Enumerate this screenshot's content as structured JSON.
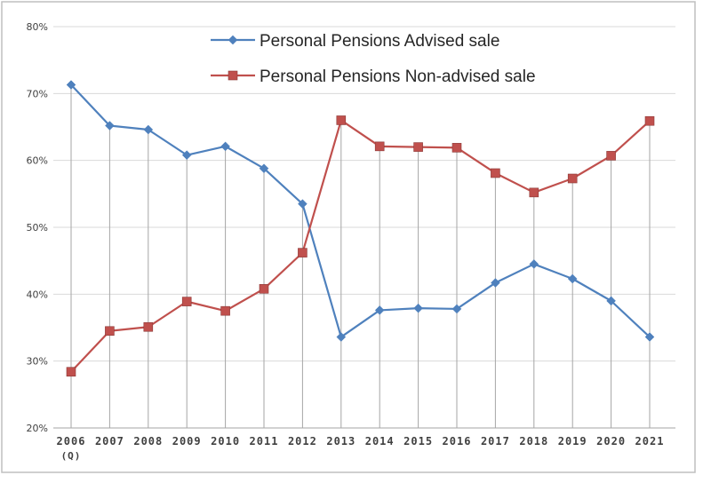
{
  "chart_data": {
    "type": "line",
    "title": "",
    "xlabel": "",
    "ylabel": "",
    "categories": [
      "2006",
      "2007",
      "2008",
      "2009",
      "2010",
      "2011",
      "2012",
      "2013",
      "2014",
      "2015",
      "2016",
      "2017",
      "2018",
      "2019",
      "2020",
      "2021"
    ],
    "category_sublabels": [
      "(Q)",
      "",
      "",
      "",
      "",
      "",
      "",
      "",
      "",
      "",
      "",
      "",
      "",
      "",
      "",
      ""
    ],
    "y_ticks": [
      "20%",
      "30%",
      "40%",
      "50%",
      "60%",
      "70%",
      "80%"
    ],
    "ylim": [
      20,
      80
    ],
    "y_unit": "%",
    "grid": true,
    "legend_position": "top-center",
    "series": [
      {
        "name": "Personal Pensions Advised sale",
        "color": "#4f81bd",
        "marker": "diamond",
        "values": [
          71.3,
          65.2,
          64.6,
          60.8,
          62.1,
          58.8,
          53.5,
          33.6,
          37.6,
          37.9,
          37.8,
          41.7,
          44.5,
          42.3,
          39.0,
          33.6
        ]
      },
      {
        "name": "Personal Pensions Non-advised sale",
        "color": "#c0504d",
        "marker": "square",
        "values": [
          28.4,
          34.5,
          35.1,
          38.9,
          37.5,
          40.8,
          46.2,
          66.0,
          62.1,
          62.0,
          61.9,
          58.1,
          55.2,
          57.3,
          60.7,
          65.9
        ]
      }
    ]
  }
}
